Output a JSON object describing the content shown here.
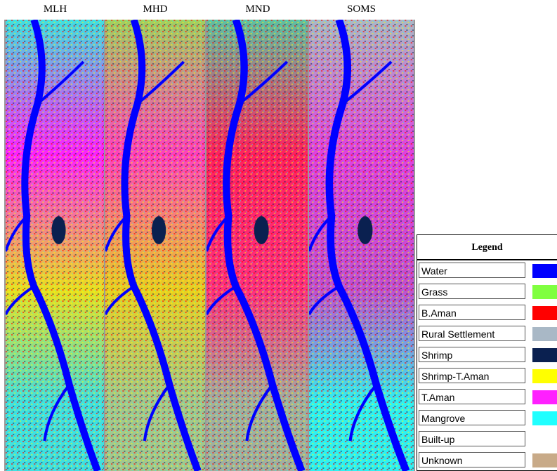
{
  "panels": [
    {
      "title": "MLH"
    },
    {
      "title": "MHD"
    },
    {
      "title": "MND"
    },
    {
      "title": "SOMS"
    }
  ],
  "legend": {
    "title": "Legend",
    "items": [
      {
        "label": "Water",
        "color": "#0000ff"
      },
      {
        "label": "Grass",
        "color": "#80ff40"
      },
      {
        "label": "B.Aman",
        "color": "#ff0000"
      },
      {
        "label": "Rural Settlement",
        "color": "#a9b8c6"
      },
      {
        "label": "Shrimp",
        "color": "#0a2050"
      },
      {
        "label": "Shrimp-T.Aman",
        "color": "#ffff00"
      },
      {
        "label": "T.Aman",
        "color": "#ff20ff"
      },
      {
        "label": "Mangrove",
        "color": "#20ffff"
      },
      {
        "label": "Built-up",
        "color": "#ffffff"
      },
      {
        "label": "Unknown",
        "color": "#c8aa88"
      }
    ]
  }
}
